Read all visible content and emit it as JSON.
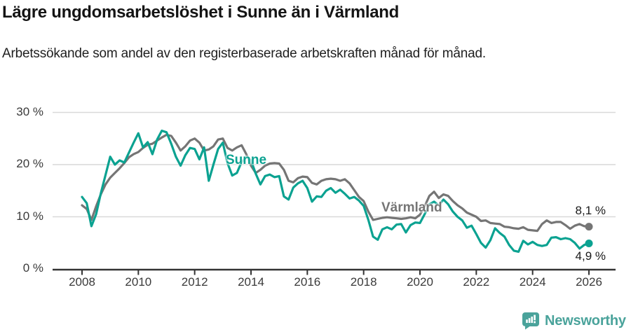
{
  "header": {
    "title": "Lägre ungdomsarbetslöshet i Sunne än i Värmland",
    "subtitle": "Arbetssökande som andel av den registerbaserade arbetskraften månad för månad."
  },
  "chart_data": {
    "type": "line",
    "title": "Lägre ungdomsarbetslöshet i Sunne än i Värmland",
    "subtitle": "Arbetssökande som andel av den registerbaserade arbetskraften månad för månad.",
    "unit": "%",
    "x_start_year": 2008,
    "points_per_year": 6,
    "xlim": [
      2008,
      2026
    ],
    "ylim": [
      0,
      30
    ],
    "grid": "horizontal",
    "x_ticks": [
      2008,
      2010,
      2012,
      2014,
      2016,
      2018,
      2020,
      2022,
      2024,
      2026
    ],
    "y_ticks": [
      {
        "value": 30,
        "label": "30 %"
      },
      {
        "value": 20,
        "label": "20 %"
      },
      {
        "value": 10,
        "label": "10 %"
      },
      {
        "value": 0,
        "label": "0 %"
      }
    ],
    "series": [
      {
        "name": "Sunne",
        "color": "#0ba291",
        "end_label": "4,9 %",
        "end_value": 4.9,
        "values": [
          13.8,
          12.6,
          8.2,
          10.5,
          14.5,
          18.0,
          21.5,
          20.0,
          20.8,
          20.4,
          22.3,
          24.2,
          26.0,
          23.3,
          24.3,
          22.0,
          24.8,
          26.5,
          26.2,
          24.0,
          21.5,
          19.8,
          21.8,
          23.2,
          23.0,
          21.0,
          23.3,
          16.9,
          20.0,
          23.0,
          24.2,
          20.3,
          17.9,
          18.4,
          20.5,
          21.4,
          20.8,
          18.3,
          16.2,
          17.8,
          18.1,
          17.6,
          17.8,
          13.9,
          13.3,
          15.6,
          16.4,
          16.9,
          15.5,
          12.9,
          13.9,
          13.8,
          15.0,
          15.5,
          14.6,
          15.2,
          14.4,
          13.5,
          13.8,
          13.1,
          12.1,
          9.4,
          6.2,
          5.6,
          7.6,
          8.0,
          7.6,
          8.5,
          8.6,
          7.0,
          8.4,
          8.9,
          8.8,
          10.5,
          12.4,
          12.9,
          12.2,
          13.3,
          12.4,
          11.0,
          10.0,
          9.3,
          7.9,
          8.3,
          6.7,
          5.0,
          4.1,
          5.5,
          7.8,
          6.9,
          6.2,
          4.6,
          3.5,
          3.3,
          5.4,
          4.7,
          5.2,
          4.6,
          4.4,
          4.6,
          6.0,
          6.1,
          5.7,
          5.9,
          5.7,
          5.0,
          3.9,
          4.6,
          4.9
        ]
      },
      {
        "name": "Värmland",
        "color": "#757575",
        "end_label": "8,1 %",
        "end_value": 8.1,
        "values": [
          12.2,
          11.5,
          9.4,
          12.0,
          14.3,
          16.2,
          17.5,
          18.4,
          19.3,
          20.3,
          21.4,
          22.0,
          22.4,
          23.2,
          23.8,
          24.0,
          24.6,
          25.2,
          25.7,
          25.5,
          24.2,
          22.7,
          23.5,
          24.6,
          25.0,
          24.2,
          22.7,
          22.9,
          23.5,
          24.8,
          25.0,
          23.2,
          22.7,
          23.3,
          23.7,
          22.0,
          19.8,
          18.4,
          19.0,
          19.8,
          20.2,
          20.3,
          20.2,
          19.0,
          16.9,
          16.6,
          17.4,
          17.7,
          17.6,
          16.5,
          16.2,
          16.9,
          17.2,
          17.3,
          17.2,
          16.9,
          17.2,
          16.4,
          15.1,
          13.8,
          13.0,
          11.0,
          9.4,
          9.6,
          9.8,
          9.9,
          9.8,
          9.7,
          9.6,
          9.7,
          9.9,
          9.7,
          10.4,
          12.0,
          14.0,
          14.8,
          13.6,
          14.3,
          14.0,
          13.0,
          12.2,
          11.6,
          10.8,
          10.4,
          10.0,
          9.2,
          9.3,
          8.8,
          8.7,
          8.6,
          8.1,
          8.0,
          7.8,
          7.7,
          8.0,
          7.5,
          7.4,
          7.3,
          8.6,
          9.3,
          8.8,
          9.0,
          9.0,
          8.4,
          7.7,
          8.3,
          8.6,
          8.2,
          8.1
        ]
      }
    ],
    "colors": {
      "sunne_teal": "#0ba291",
      "varmland_gray": "#757575",
      "gridline": "#d9d9d9",
      "axis": "#333333",
      "logo_teal": "#4aa39b"
    }
  },
  "footer": {
    "brand": "Newsworthy"
  }
}
